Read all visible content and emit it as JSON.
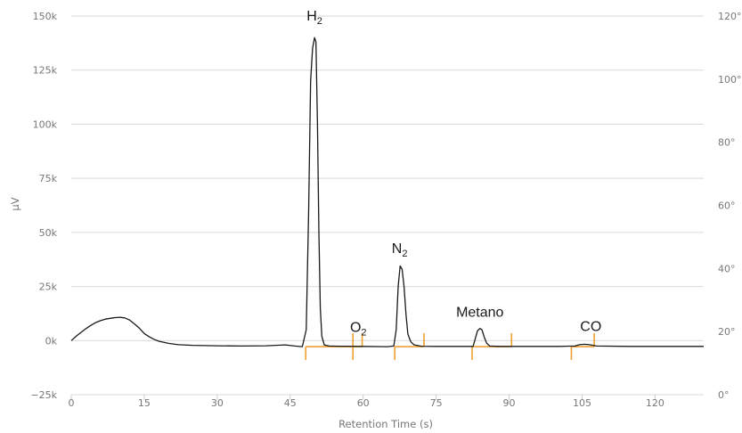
{
  "chart_data": {
    "type": "line",
    "xlabel": "Retention Time (s)",
    "ylabel": "µV",
    "xlim": [
      0,
      130
    ],
    "ylim": [
      -25000,
      150000
    ],
    "y2lim": [
      0,
      120
    ],
    "x_ticks": [
      "0",
      "15",
      "30",
      "45",
      "60",
      "75",
      "90",
      "105",
      "120"
    ],
    "x_tick_values": [
      0,
      15,
      30,
      45,
      60,
      75,
      90,
      105,
      120
    ],
    "y_ticks": [
      "150k",
      "125k",
      "100k",
      "75k",
      "50k",
      "25k",
      "0k",
      "−25k"
    ],
    "y_tick_values": [
      150000,
      125000,
      100000,
      75000,
      50000,
      25000,
      0,
      -25000
    ],
    "y2_ticks": [
      "120°",
      "100°",
      "80°",
      "60°",
      "40°",
      "20°",
      "0°"
    ],
    "y2_tick_values": [
      120,
      100,
      80,
      60,
      40,
      20,
      0
    ],
    "grid": true,
    "line_color": "#1a1a1a",
    "marker_color": "#f0a030",
    "grid_color": "#d9d9d9",
    "series": [
      {
        "x": [
          0,
          1,
          2,
          3,
          4,
          5,
          6,
          7,
          8,
          9,
          10,
          11,
          12,
          13,
          14,
          15,
          16,
          17,
          18,
          20,
          22,
          25,
          30,
          35,
          40,
          42,
          44,
          46,
          47.5,
          48.3,
          48.8,
          49.2,
          49.6,
          50.0,
          50.3,
          50.6,
          50.9,
          51.2,
          51.5,
          52.0,
          53,
          55,
          60,
          65,
          66.3,
          66.8,
          67.2,
          67.6,
          68.0,
          68.4,
          68.8,
          69.2,
          69.8,
          70.5,
          72,
          75,
          80,
          82.6,
          83.0,
          83.5,
          84.0,
          84.4,
          84.9,
          85.4,
          86,
          88,
          95,
          100,
          103.5,
          104.5,
          105.5,
          106.5,
          108,
          115,
          125,
          130
        ],
        "y": [
          0,
          2000,
          3800,
          5500,
          7000,
          8300,
          9200,
          9900,
          10300,
          10600,
          10800,
          10500,
          9500,
          7700,
          5700,
          3300,
          1800,
          600,
          -300,
          -1300,
          -1900,
          -2200,
          -2400,
          -2500,
          -2400,
          -2200,
          -2000,
          -2500,
          -2800,
          5000,
          60000,
          120000,
          135000,
          140000,
          138000,
          100000,
          50000,
          15000,
          2000,
          -2000,
          -2500,
          -2600,
          -2700,
          -2800,
          -2500,
          5000,
          25000,
          34500,
          33000,
          25000,
          12000,
          3000,
          -600,
          -2000,
          -2600,
          -2700,
          -2700,
          -2700,
          500,
          4500,
          5600,
          5000,
          1500,
          -1200,
          -2500,
          -2700,
          -2700,
          -2700,
          -2500,
          -1900,
          -1700,
          -1900,
          -2500,
          -2700,
          -2700,
          -2700
        ]
      }
    ],
    "peak_labels": [
      {
        "main": "H",
        "sub": "2",
        "x": 50.0,
        "y": 148000
      },
      {
        "main": "O",
        "sub": "2",
        "x": 59.0,
        "y": 4000
      },
      {
        "main": "N",
        "sub": "2",
        "x": 67.5,
        "y": 40500
      },
      {
        "main": "Metano",
        "sub": "",
        "x": 84.0,
        "y": 11000
      },
      {
        "main": "CO",
        "sub": "",
        "x": 106.8,
        "y": 4500
      }
    ],
    "integration_ranges": [
      {
        "start": 48.2,
        "end": 57.9
      },
      {
        "start": 57.9,
        "end": 59.8
      },
      {
        "start": 66.5,
        "end": 72.5
      },
      {
        "start": 82.4,
        "end": 90.5
      },
      {
        "start": 102.8,
        "end": 107.5
      }
    ],
    "integration_baseline_y": -2800
  }
}
